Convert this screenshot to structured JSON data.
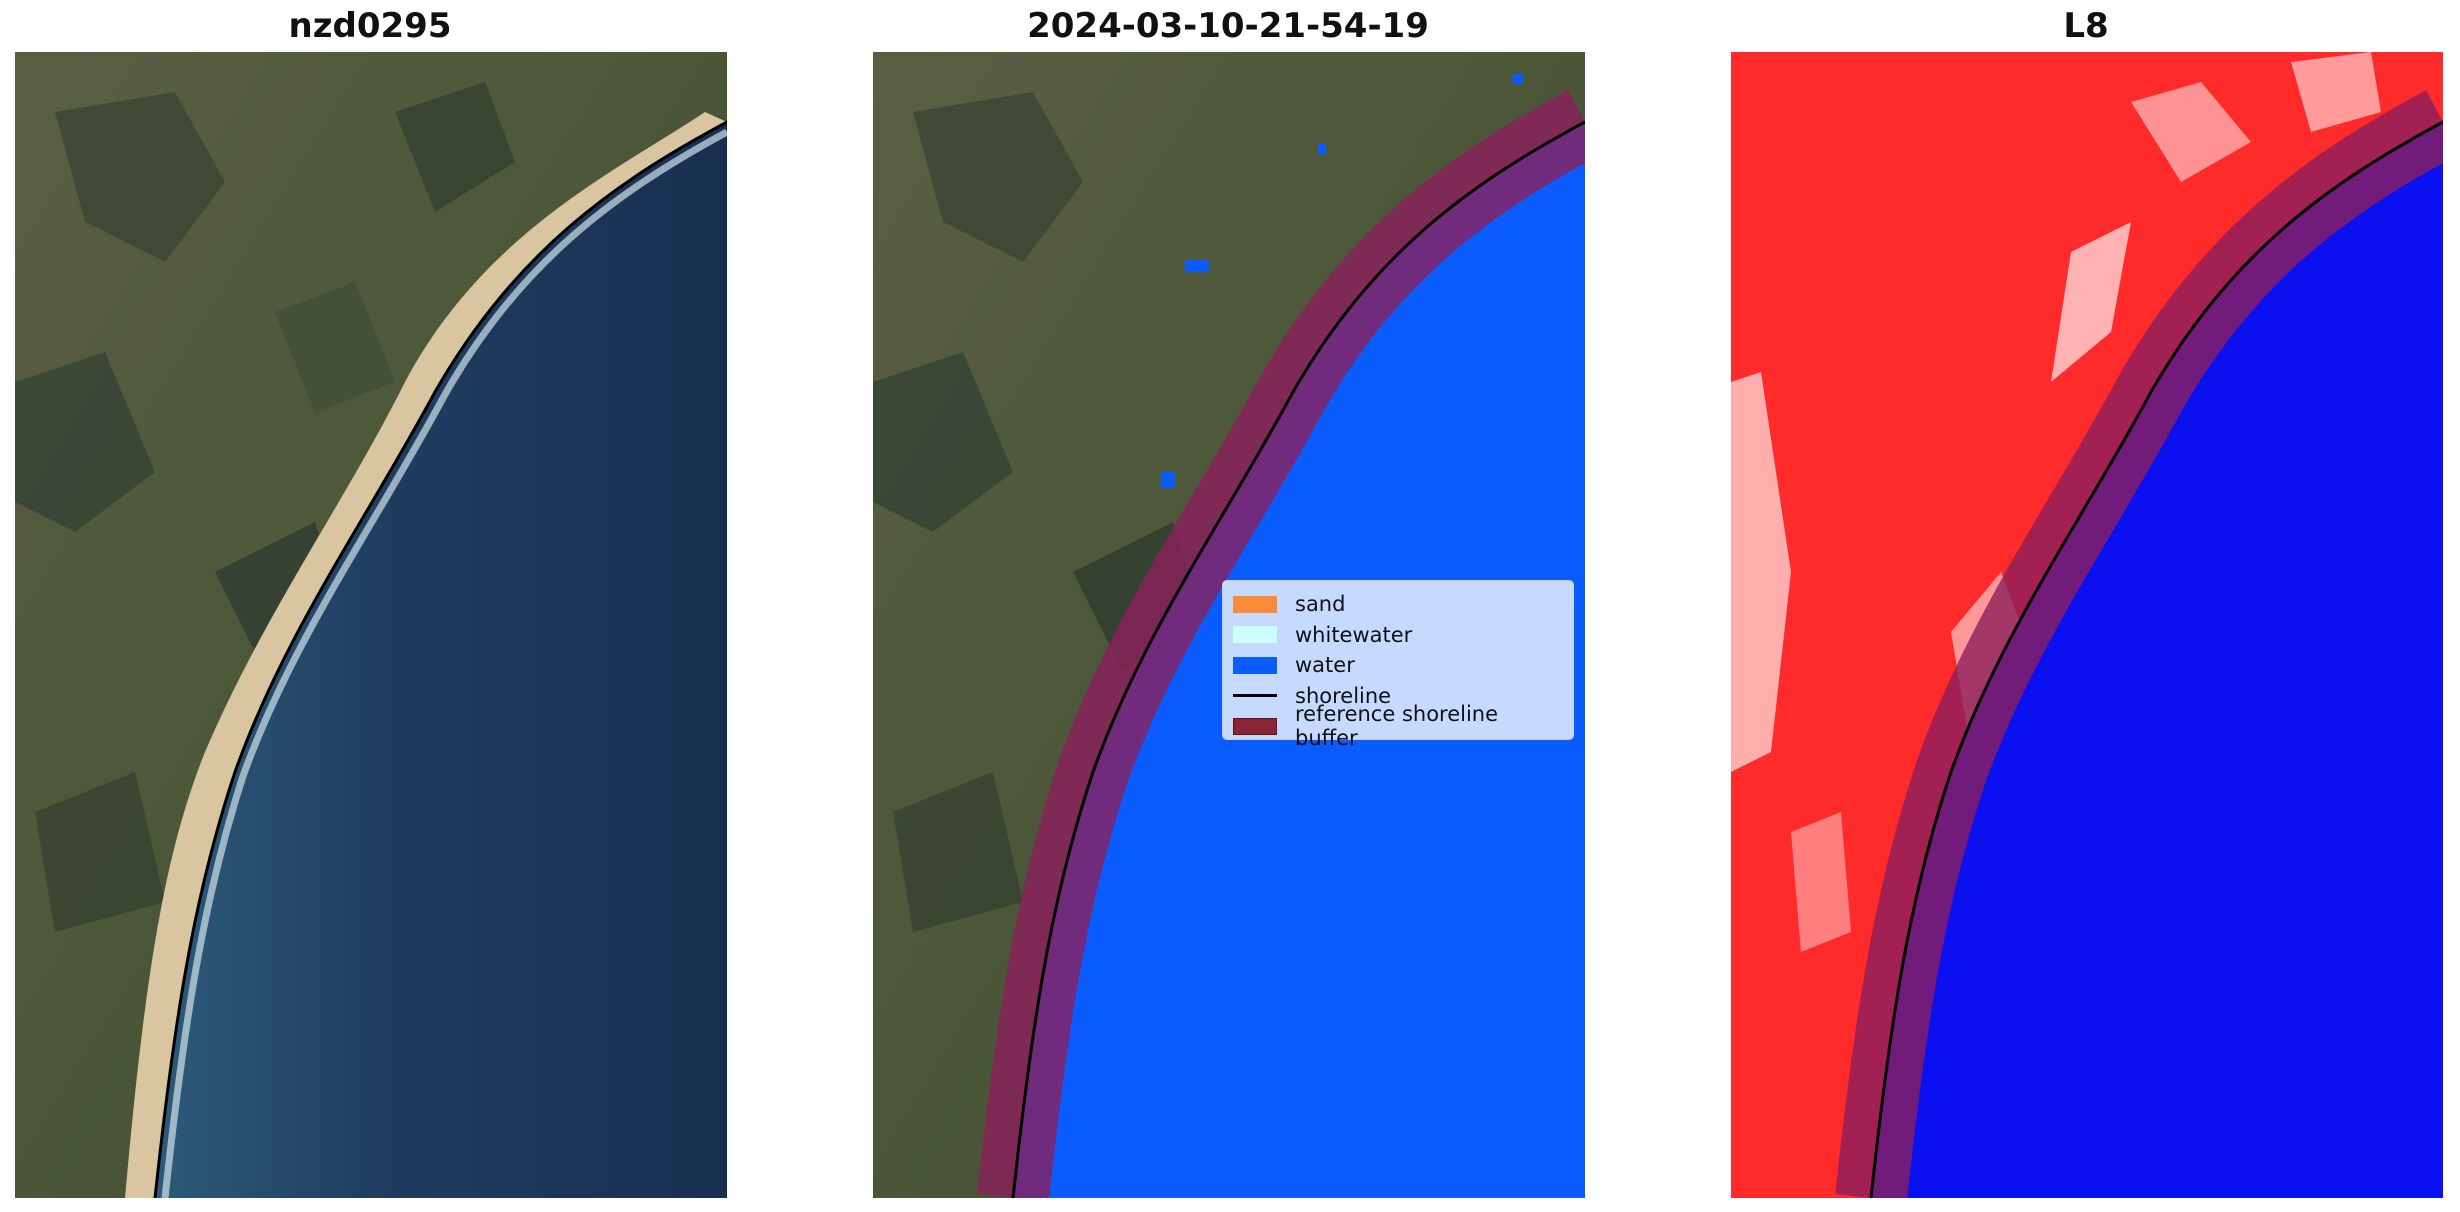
{
  "panels": [
    {
      "title": "nzd0295"
    },
    {
      "title": "2024-03-10-21-54-19"
    },
    {
      "title": "L8"
    }
  ],
  "legend": {
    "items": [
      {
        "label": "sand",
        "color": "#fb8c3c"
      },
      {
        "label": "whitewater",
        "color": "#ccffff"
      },
      {
        "label": "water",
        "color": "#0a5cff"
      },
      {
        "label": "shoreline",
        "color": "#000000"
      },
      {
        "label": "reference shoreline buffer",
        "color": "#8b2533"
      }
    ]
  },
  "colors": {
    "land": "#4e5a3c",
    "ocean": "#1f3a5c",
    "sand": "#d8c49a",
    "water_class": "#0a5cff",
    "buffer": "#8b1f5c",
    "index_land": "#ff2020",
    "index_water": "#0a10f0"
  }
}
